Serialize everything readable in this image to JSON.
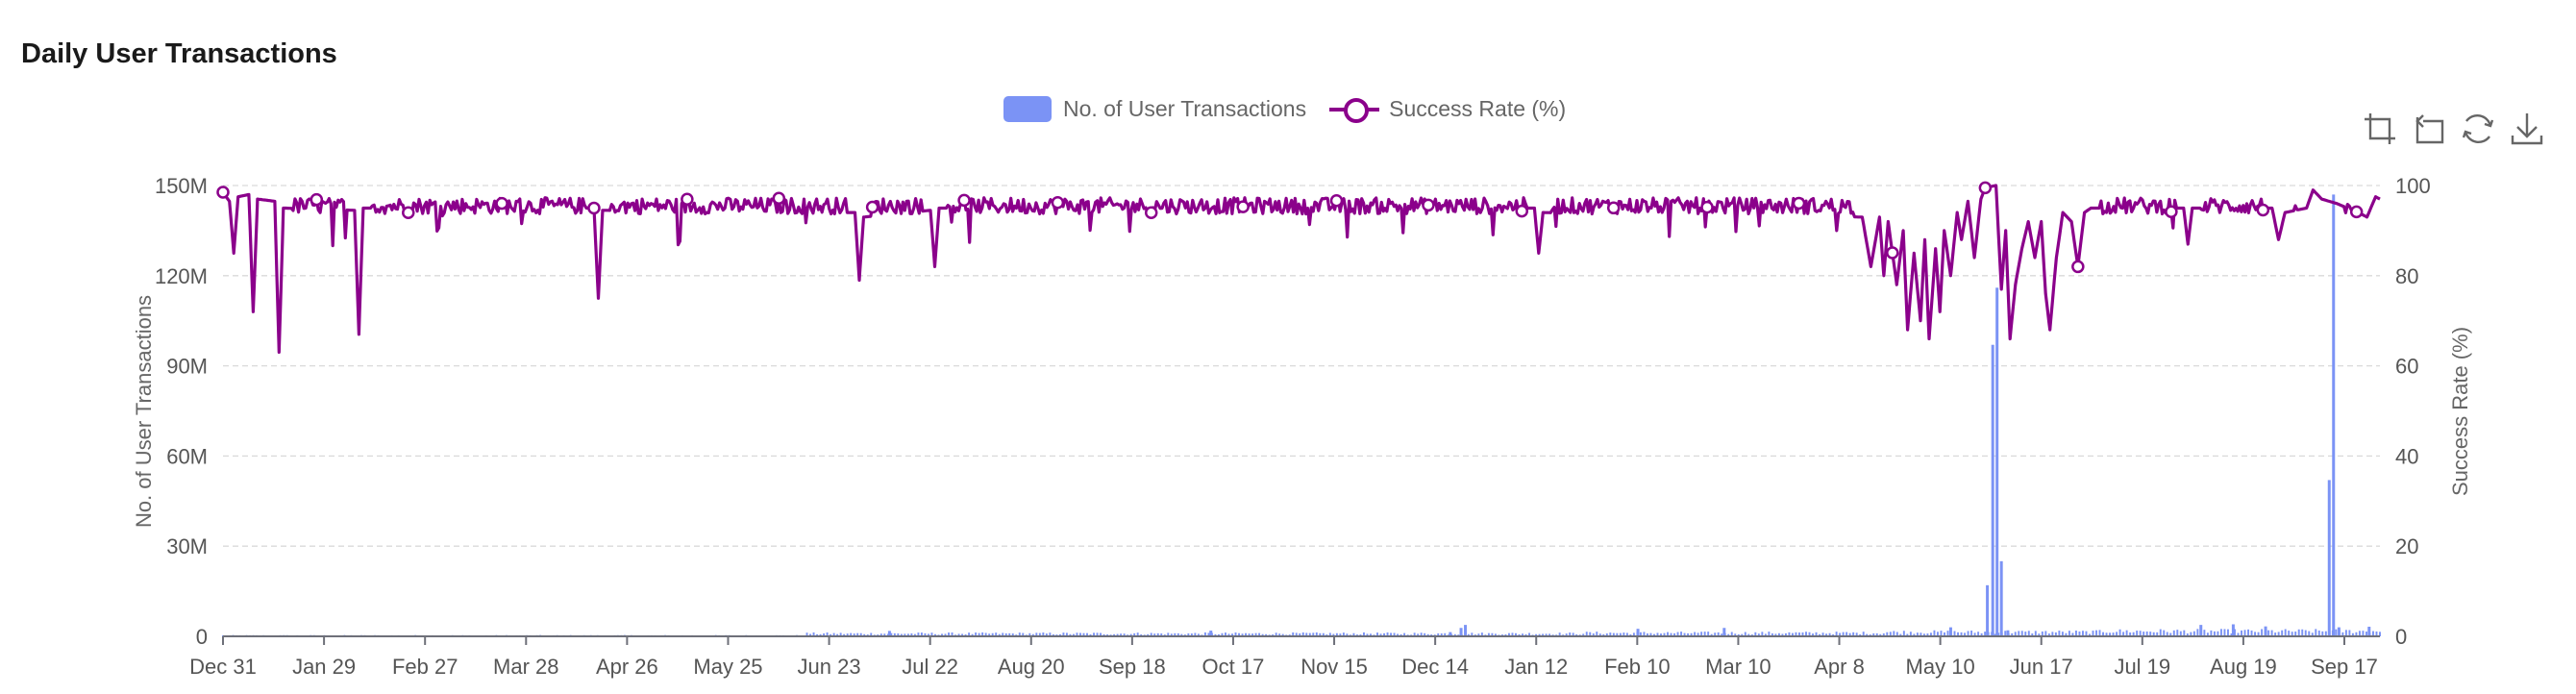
{
  "title": "Daily User Transactions",
  "legend": {
    "bar_label": "No. of User Transactions",
    "line_label": "Success Rate (%)"
  },
  "toolbox": [
    {
      "name": "zoom-icon",
      "tooltip": "Zoom"
    },
    {
      "name": "zoom-reset-icon",
      "tooltip": "Zoom Reset"
    },
    {
      "name": "restore-icon",
      "tooltip": "Restore"
    },
    {
      "name": "download-icon",
      "tooltip": "Save as Image"
    }
  ],
  "colors": {
    "bar": "#7b93f5",
    "line": "#8b008b",
    "grid": "#d9d9d9",
    "axis": "#6e7079"
  },
  "chart_data": {
    "type": "bar+line",
    "x_range": [
      "2018-12-31",
      "2024-09-30"
    ],
    "x_tick_labels": [
      "Dec 31",
      "Jan 29",
      "Feb 27",
      "Mar 28",
      "Apr 26",
      "May 25",
      "Jun 23",
      "Jul 22",
      "Aug 20",
      "Sep 18",
      "Oct 17",
      "Nov 15",
      "Dec 14",
      "Jan 12",
      "Feb 10",
      "Mar 10",
      "Apr 8",
      "May 10",
      "Jun 17",
      "Jul 19",
      "Aug 19",
      "Sep 17"
    ],
    "y_left": {
      "label": "No. of User Transactions",
      "range": [
        0,
        150000000
      ],
      "tick_labels": [
        "0",
        "30M",
        "60M",
        "90M",
        "120M",
        "150M"
      ]
    },
    "y_right": {
      "label": "Success Rate (%)",
      "range": [
        0,
        100
      ],
      "tick_labels": [
        "0",
        "20",
        "40",
        "60",
        "80",
        "100"
      ]
    },
    "grid": "horizontal dashed",
    "legend_position": "top-center",
    "series": [
      {
        "name": "No. of User Transactions",
        "type": "bar",
        "axis": "left",
        "baseline_levels": [
          [
            0.0,
            0.27,
            300000
          ],
          [
            0.27,
            0.63,
            900000
          ],
          [
            0.63,
            0.77,
            1100000
          ],
          [
            0.77,
            0.87,
            1400000
          ],
          [
            0.87,
            1.0,
            1700000
          ]
        ],
        "spikes": [
          [
            0.309,
            1800000
          ],
          [
            0.458,
            1900000
          ],
          [
            0.569,
            1400000
          ],
          [
            0.574,
            2800000
          ],
          [
            0.576,
            3800000
          ],
          [
            0.656,
            2500000
          ],
          [
            0.696,
            2800000
          ],
          [
            0.801,
            3000000
          ],
          [
            0.818,
            17000000
          ],
          [
            0.8205,
            97000000
          ],
          [
            0.8225,
            116000000
          ],
          [
            0.8245,
            25000000
          ],
          [
            0.8275,
            2000000
          ],
          [
            0.917,
            3800000
          ],
          [
            0.932,
            4000000
          ],
          [
            0.947,
            3300000
          ],
          [
            0.9765,
            52000000
          ],
          [
            0.9785,
            147000000
          ],
          [
            0.981,
            3000000
          ],
          [
            0.995,
            3200000
          ]
        ]
      },
      {
        "name": "Success Rate (%)",
        "type": "line",
        "axis": "right",
        "marker_interval": 0.043,
        "noise_baseline": 95.5,
        "noise_amplitude": 1.8,
        "points": [
          [
            0.0,
            98.5
          ],
          [
            0.003,
            96.5
          ],
          [
            0.005,
            85.0
          ],
          [
            0.007,
            97.5
          ],
          [
            0.012,
            98.0
          ],
          [
            0.014,
            72.0
          ],
          [
            0.016,
            97.0
          ],
          [
            0.024,
            96.5
          ],
          [
            0.026,
            63.0
          ],
          [
            0.028,
            95.0
          ],
          [
            0.061,
            94.5
          ],
          [
            0.063,
            67.0
          ],
          [
            0.065,
            95.0
          ],
          [
            0.172,
            95.0
          ],
          [
            0.174,
            75.0
          ],
          [
            0.176,
            94.5
          ],
          [
            0.293,
            94.0
          ],
          [
            0.295,
            79.0
          ],
          [
            0.297,
            93.0
          ],
          [
            0.328,
            94.5
          ],
          [
            0.33,
            82.0
          ],
          [
            0.332,
            95.0
          ],
          [
            0.608,
            95.0
          ],
          [
            0.61,
            85.0
          ],
          [
            0.612,
            94.0
          ],
          [
            0.76,
            93.0
          ],
          [
            0.764,
            82.0
          ],
          [
            0.768,
            93.0
          ],
          [
            0.77,
            80.0
          ],
          [
            0.772,
            92.0
          ],
          [
            0.776,
            78.0
          ],
          [
            0.779,
            90.0
          ],
          [
            0.781,
            68.0
          ],
          [
            0.784,
            85.0
          ],
          [
            0.787,
            70.0
          ],
          [
            0.789,
            88.0
          ],
          [
            0.791,
            66.0
          ],
          [
            0.794,
            86.0
          ],
          [
            0.796,
            72.0
          ],
          [
            0.798,
            90.0
          ],
          [
            0.801,
            80.0
          ],
          [
            0.804,
            94.0
          ],
          [
            0.806,
            88.0
          ],
          [
            0.809,
            96.5
          ],
          [
            0.812,
            84.0
          ],
          [
            0.815,
            97.0
          ],
          [
            0.817,
            99.5
          ],
          [
            0.822,
            100.0
          ],
          [
            0.8245,
            77.0
          ],
          [
            0.8265,
            90.0
          ],
          [
            0.8285,
            66.0
          ],
          [
            0.831,
            78.0
          ],
          [
            0.834,
            86.0
          ],
          [
            0.837,
            92.0
          ],
          [
            0.84,
            84.0
          ],
          [
            0.843,
            92.0
          ],
          [
            0.845,
            76.0
          ],
          [
            0.847,
            68.0
          ],
          [
            0.85,
            84.0
          ],
          [
            0.853,
            94.0
          ],
          [
            0.857,
            92.0
          ],
          [
            0.86,
            82.0
          ],
          [
            0.863,
            94.0
          ],
          [
            0.866,
            95.0
          ],
          [
            0.909,
            95.0
          ],
          [
            0.911,
            87.0
          ],
          [
            0.913,
            95.0
          ],
          [
            0.95,
            95.0
          ],
          [
            0.953,
            88.0
          ],
          [
            0.956,
            94.0
          ],
          [
            0.966,
            95.0
          ],
          [
            0.969,
            99.0
          ],
          [
            0.973,
            97.0
          ],
          [
            0.98,
            96.0
          ],
          [
            0.99,
            94.0
          ],
          [
            0.994,
            93.0
          ],
          [
            0.998,
            97.5
          ],
          [
            1.0,
            97.0
          ]
        ]
      }
    ]
  }
}
